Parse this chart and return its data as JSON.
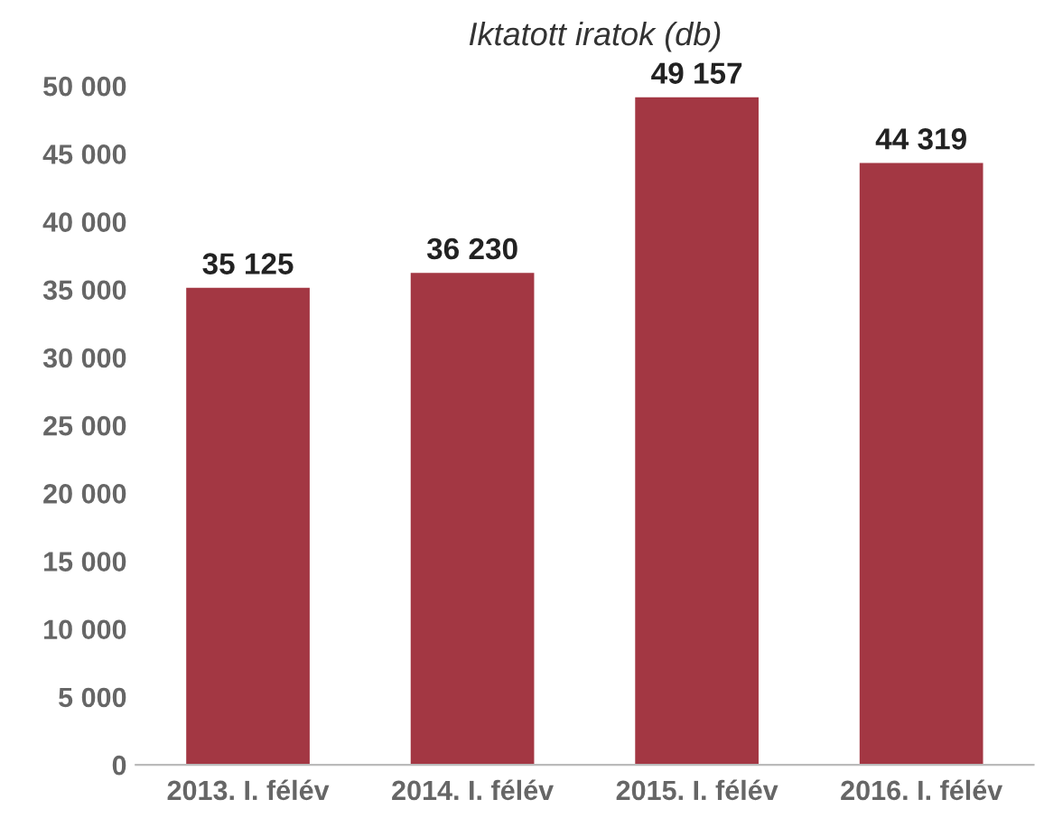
{
  "chart_data": {
    "type": "bar",
    "title": "Iktatott iratok (db)",
    "categories": [
      "2013. I. félév",
      "2014. I. félév",
      "2015. I. félév",
      "2016. I. félév"
    ],
    "values": [
      35125,
      36230,
      49157,
      44319
    ],
    "value_labels": [
      "35 125",
      "36 230",
      "49 157",
      "44 319"
    ],
    "color": "#a33743",
    "ylim": [
      0,
      50000
    ],
    "yticks": [
      {
        "value": 0,
        "label": "0"
      },
      {
        "value": 5000,
        "label": "5 000"
      },
      {
        "value": 10000,
        "label": "10 000"
      },
      {
        "value": 15000,
        "label": "15 000"
      },
      {
        "value": 20000,
        "label": "20 000"
      },
      {
        "value": 25000,
        "label": "25 000"
      },
      {
        "value": 30000,
        "label": "30 000"
      },
      {
        "value": 35000,
        "label": "35 000"
      },
      {
        "value": 40000,
        "label": "40 000"
      },
      {
        "value": 45000,
        "label": "45 000"
      },
      {
        "value": 50000,
        "label": "50 000"
      }
    ],
    "grid": false
  }
}
